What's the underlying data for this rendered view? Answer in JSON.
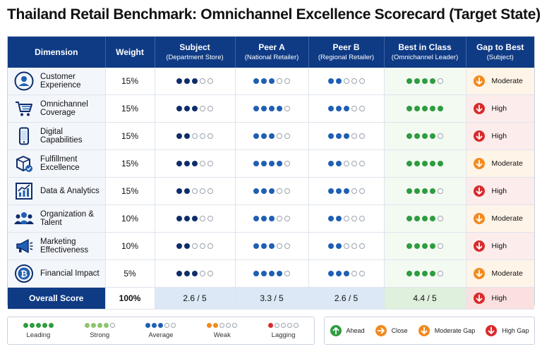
{
  "title": "Thailand Retail Benchmark: Omnichannel Excellence Scorecard (Target State)",
  "colors": {
    "header": "#0f3b85",
    "navy": "#0f2d6b",
    "blue": "#1f5fb4",
    "green": "#2e9c3f",
    "green_light": "#8dc46f",
    "orange": "#f28a1e",
    "red": "#d92b2b",
    "empty_border": "#9aa3ad"
  },
  "columns": {
    "dimension": "Dimension",
    "weight": "Weight",
    "subject": {
      "title": "Subject",
      "subtitle": "(Department Store)"
    },
    "peer_a": {
      "title": "Peer A",
      "subtitle": "(National Retailer)"
    },
    "peer_b": {
      "title": "Peer B",
      "subtitle": "(Regional Retailer)"
    },
    "best": {
      "title": "Best in Class",
      "subtitle": "(Omnichannel Leader)"
    },
    "gap": {
      "title": "Gap to Best",
      "subtitle": "(Subject)"
    }
  },
  "chart_data": {
    "type": "table",
    "scale_max": 5,
    "rows": [
      {
        "icon": "person-icon",
        "dimension": "Customer Experience",
        "weight": "15%",
        "subject": 3,
        "peer_a": 3,
        "peer_b": 2,
        "best": 4,
        "gap": "Moderate",
        "gap_level": "mod"
      },
      {
        "icon": "cart-icon",
        "dimension": "Omnichannel Coverage",
        "weight": "15%",
        "subject": 3,
        "peer_a": 4,
        "peer_b": 3,
        "best": 5,
        "gap": "High",
        "gap_level": "high"
      },
      {
        "icon": "phone-icon",
        "dimension": "Digital Capabilities",
        "weight": "15%",
        "subject": 2,
        "peer_a": 3,
        "peer_b": 3,
        "best": 4,
        "gap": "High",
        "gap_level": "high"
      },
      {
        "icon": "package-icon",
        "dimension": "Fulfillment Excellence",
        "weight": "15%",
        "subject": 3,
        "peer_a": 4,
        "peer_b": 2,
        "best": 5,
        "gap": "Moderate",
        "gap_level": "mod"
      },
      {
        "icon": "analytics-icon",
        "dimension": "Data & Analytics",
        "weight": "15%",
        "subject": 2,
        "peer_a": 3,
        "peer_b": 3,
        "best": 4,
        "gap": "High",
        "gap_level": "high"
      },
      {
        "icon": "team-icon",
        "dimension": "Organization & Talent",
        "weight": "10%",
        "subject": 3,
        "peer_a": 3,
        "peer_b": 2,
        "best": 4,
        "gap": "Moderate",
        "gap_level": "mod"
      },
      {
        "icon": "megaphone-icon",
        "dimension": "Marketing Effectiveness",
        "weight": "10%",
        "subject": 2,
        "peer_a": 3,
        "peer_b": 2,
        "best": 4,
        "gap": "High",
        "gap_level": "high"
      },
      {
        "icon": "bitcoin-icon",
        "dimension": "Financial Impact",
        "weight": "5%",
        "subject": 3,
        "peer_a": 4,
        "peer_b": 3,
        "best": 4,
        "gap": "Moderate",
        "gap_level": "mod"
      }
    ],
    "overall": {
      "label": "Overall Score",
      "weight": "100%",
      "subject": "2.6 / 5",
      "peer_a": "3.3 / 5",
      "peer_b": "2.6 / 5",
      "best": "4.4 / 5",
      "gap": "High",
      "gap_level": "high"
    }
  },
  "legend_scale": [
    {
      "label": "Leading",
      "filled": 5,
      "color": "#2e9c3f"
    },
    {
      "label": "Strong",
      "filled": 4,
      "color": "#8dc46f"
    },
    {
      "label": "Average",
      "filled": 3,
      "color": "#1f5fb4"
    },
    {
      "label": "Weak",
      "filled": 2,
      "color": "#f28a1e"
    },
    {
      "label": "Lagging",
      "filled": 1,
      "color": "#d92b2b"
    }
  ],
  "legend_gap": [
    {
      "label": "Ahead",
      "direction": "up",
      "color": "#2e9c3f"
    },
    {
      "label": "Close",
      "direction": "right",
      "color": "#f28a1e"
    },
    {
      "label": "Moderate Gap",
      "direction": "down",
      "color": "#f28a1e"
    },
    {
      "label": "High Gap",
      "direction": "down",
      "color": "#d92b2b"
    }
  ]
}
